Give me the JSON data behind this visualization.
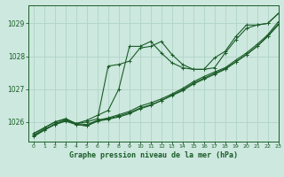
{
  "bg_color": "#cde8de",
  "grid_color": "#b0d4c8",
  "line_color": "#1a5c28",
  "title": "Graphe pression niveau de la mer (hPa)",
  "xlim": [
    -0.5,
    23
  ],
  "ylim": [
    1025.4,
    1029.55
  ],
  "yticks": [
    1026,
    1027,
    1028,
    1029
  ],
  "xticks": [
    0,
    1,
    2,
    3,
    4,
    5,
    6,
    7,
    8,
    9,
    10,
    11,
    12,
    13,
    14,
    15,
    16,
    17,
    18,
    19,
    20,
    21,
    22,
    23
  ],
  "series": [
    [
      1025.65,
      1025.82,
      1026.0,
      1026.08,
      1025.95,
      1026.0,
      1026.1,
      1027.7,
      1027.75,
      1027.85,
      1028.25,
      1028.3,
      1028.45,
      1028.05,
      1027.75,
      1027.6,
      1027.6,
      1027.65,
      1028.1,
      1028.5,
      1028.85,
      1028.95,
      1029.0,
      1029.3
    ],
    [
      1025.65,
      1025.82,
      1026.0,
      1026.1,
      1025.95,
      1026.05,
      1026.2,
      1026.35,
      1027.0,
      1028.3,
      1028.3,
      1028.45,
      1028.1,
      1027.8,
      1027.65,
      1027.6,
      1027.6,
      1027.95,
      1028.15,
      1028.6,
      1028.95,
      1028.95,
      1029.0,
      1029.3
    ],
    [
      1025.6,
      1025.78,
      1025.92,
      1026.05,
      1025.95,
      1025.92,
      1026.05,
      1026.1,
      1026.18,
      1026.28,
      1026.42,
      1026.52,
      1026.65,
      1026.82,
      1026.98,
      1027.18,
      1027.33,
      1027.48,
      1027.62,
      1027.83,
      1028.05,
      1028.3,
      1028.62,
      1028.98
    ],
    [
      1025.55,
      1025.75,
      1025.92,
      1026.02,
      1025.92,
      1025.88,
      1026.02,
      1026.08,
      1026.15,
      1026.25,
      1026.4,
      1026.5,
      1026.65,
      1026.8,
      1026.95,
      1027.15,
      1027.3,
      1027.45,
      1027.6,
      1027.82,
      1028.05,
      1028.3,
      1028.6,
      1028.95
    ],
    [
      1025.58,
      1025.75,
      1025.95,
      1026.05,
      1025.92,
      1025.88,
      1026.05,
      1026.12,
      1026.22,
      1026.32,
      1026.48,
      1026.58,
      1026.7,
      1026.85,
      1027.02,
      1027.22,
      1027.38,
      1027.52,
      1027.65,
      1027.88,
      1028.1,
      1028.36,
      1028.65,
      1029.05
    ]
  ]
}
